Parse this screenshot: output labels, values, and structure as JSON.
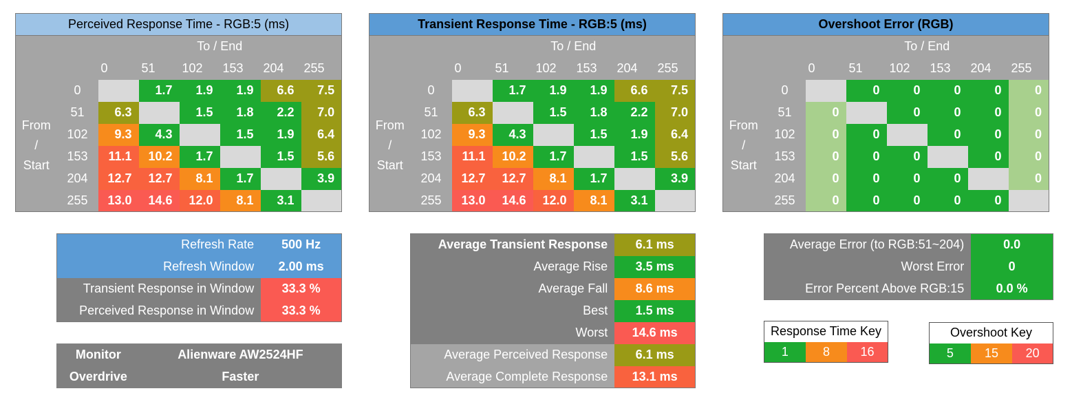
{
  "axes": {
    "to_end": "To / End",
    "from_start_lines": [
      "From",
      "/",
      "Start"
    ],
    "levels": [
      "0",
      "51",
      "102",
      "153",
      "204",
      "255"
    ]
  },
  "colors": {
    "green": "#1daa31",
    "olive": "#9a9a16",
    "orange": "#f78b1c",
    "red": "#fa5a52",
    "light_green": "#a8d08d",
    "diag_gray": "#d9d9d9",
    "header_gray": "#a5a5a5",
    "label_gray": "#808080",
    "blue": "#5b9bd5",
    "light_blue": "#9dc3e6"
  },
  "perceived": {
    "title": "Perceived Response Time - RGB:5 (ms)",
    "rows": [
      [
        "",
        "1.7",
        "1.9",
        "1.9",
        "6.6",
        "7.5"
      ],
      [
        "6.3",
        "",
        "1.5",
        "1.8",
        "2.2",
        "7.0"
      ],
      [
        "9.3",
        "4.3",
        "",
        "1.5",
        "1.9",
        "6.4"
      ],
      [
        "11.1",
        "10.2",
        "1.7",
        "",
        "1.5",
        "5.6"
      ],
      [
        "12.7",
        "12.7",
        "8.1",
        "1.7",
        "",
        "3.9"
      ],
      [
        "13.0",
        "14.6",
        "12.0",
        "8.1",
        "3.1",
        ""
      ]
    ]
  },
  "transient": {
    "title": "Transient Response Time - RGB:5 (ms)",
    "rows": [
      [
        "",
        "1.7",
        "1.9",
        "1.9",
        "6.6",
        "7.5"
      ],
      [
        "6.3",
        "",
        "1.5",
        "1.8",
        "2.2",
        "7.0"
      ],
      [
        "9.3",
        "4.3",
        "",
        "1.5",
        "1.9",
        "6.4"
      ],
      [
        "11.1",
        "10.2",
        "1.7",
        "",
        "1.5",
        "5.6"
      ],
      [
        "12.7",
        "12.7",
        "8.1",
        "1.7",
        "",
        "3.9"
      ],
      [
        "13.0",
        "14.6",
        "12.0",
        "8.1",
        "3.1",
        ""
      ]
    ]
  },
  "overshoot": {
    "title": "Overshoot Error (RGB)",
    "rows": [
      [
        "",
        "0",
        "0",
        "0",
        "0",
        "0"
      ],
      [
        "0",
        "",
        "0",
        "0",
        "0",
        "0"
      ],
      [
        "0",
        "0",
        "",
        "0",
        "0",
        "0"
      ],
      [
        "0",
        "0",
        "0",
        "",
        "0",
        "0"
      ],
      [
        "0",
        "0",
        "0",
        "0",
        "",
        "0"
      ],
      [
        "0",
        "0",
        "0",
        "0",
        "0",
        ""
      ]
    ]
  },
  "refresh": {
    "refresh_rate_label": "Refresh Rate",
    "refresh_rate_value": "500 Hz",
    "refresh_window_label": "Refresh Window",
    "refresh_window_value": "2.00 ms",
    "transient_in_window_label": "Transient Response in Window",
    "transient_in_window_value": "33.3 %",
    "perceived_in_window_label": "Perceived Response in Window",
    "perceived_in_window_value": "33.3 %"
  },
  "monitor": {
    "monitor_label": "Monitor",
    "monitor_value": "Alienware AW2524HF",
    "overdrive_label": "Overdrive",
    "overdrive_value": "Faster"
  },
  "averages": {
    "avg_transient_label": "Average Transient Response",
    "avg_transient_value": "6.1 ms",
    "avg_rise_label": "Average Rise",
    "avg_rise_value": "3.5 ms",
    "avg_fall_label": "Average Fall",
    "avg_fall_value": "8.6 ms",
    "best_label": "Best",
    "best_value": "1.5 ms",
    "worst_label": "Worst",
    "worst_value": "14.6 ms",
    "avg_perceived_label": "Average Perceived Response",
    "avg_perceived_value": "6.1 ms",
    "avg_complete_label": "Average Complete Response",
    "avg_complete_value": "13.1 ms"
  },
  "errors": {
    "avg_error_label": "Average Error (to RGB:51~204)",
    "avg_error_value": "0.0",
    "worst_error_label": "Worst Error",
    "worst_error_value": "0",
    "error_percent_label": "Error Percent Above RGB:15",
    "error_percent_value": "0.0 %"
  },
  "response_key": {
    "title": "Response Time Key",
    "values": [
      "1",
      "8",
      "16"
    ]
  },
  "overshoot_key": {
    "title": "Overshoot Key",
    "values": [
      "5",
      "15",
      "20"
    ]
  }
}
